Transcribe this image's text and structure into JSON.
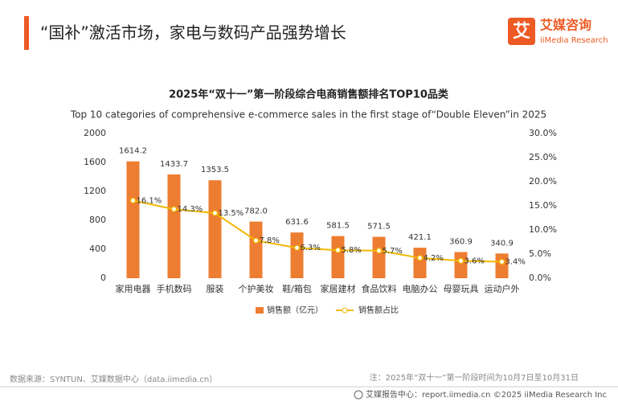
{
  "header": {
    "title": "“国补”激活市场，家电与数码产品强势增长"
  },
  "logo": {
    "icon": "艾",
    "name": "艾媒咨询",
    "sub": "iiMedia Research"
  },
  "chart_data": {
    "type": "bar_line",
    "title": "2025年“双十一”第一阶段综合电商销售额排名TOP10品类",
    "subtitle": "Top 10 categories of comprehensive e-commerce sales in the first stage of“Double Eleven”in 2025",
    "categories": [
      "家用电器",
      "手机数码",
      "服装",
      "个护美妆",
      "鞋/箱包",
      "家居建材",
      "食品饮料",
      "电脑办公",
      "母婴玩具",
      "运动户外"
    ],
    "series": [
      {
        "name": "销售额（亿元）",
        "color": "#ed7d31",
        "values": [
          1614.2,
          1433.7,
          1353.5,
          782.0,
          631.6,
          581.5,
          571.5,
          421.1,
          360.9,
          340.9
        ],
        "value_labels": [
          "1614.2",
          "1433.7",
          "1353.5",
          "782.0",
          "631.6",
          "581.5",
          "571.5",
          "421.1",
          "360.9",
          "340.9"
        ]
      },
      {
        "name": "销售额占比",
        "color": "#f2b800",
        "axis": "y2",
        "values": [
          16.1,
          14.3,
          13.5,
          7.8,
          6.3,
          5.8,
          5.7,
          4.2,
          3.6,
          3.4
        ],
        "value_labels": [
          "16.1%",
          "14.3%",
          "13.5%",
          "7.8%",
          "6.3%",
          "5.8%",
          "5.7%",
          "4.2%",
          "3.6%",
          "3.4%"
        ]
      }
    ],
    "ylim": [
      0,
      2000
    ],
    "yticks": [
      0,
      400,
      800,
      1200,
      1600,
      2000
    ],
    "y2lim": [
      0,
      30
    ],
    "y2ticks": [
      {
        "value": 0,
        "label": "0.0%"
      },
      {
        "value": 5,
        "label": "5.0%"
      },
      {
        "value": 10,
        "label": "10.0%"
      },
      {
        "value": 15,
        "label": "15.0%"
      },
      {
        "value": 20,
        "label": "20.0%"
      },
      {
        "value": 25,
        "label": "25.0%"
      },
      {
        "value": 30,
        "label": "30.0%"
      }
    ]
  },
  "footer": {
    "source": "数据来源：SYNTUN、艾媒数据中心（data.iimedia.cn）",
    "note": "注：2025年“双十一”第一阶段时间为10月7日至10月31日",
    "site": "艾媒报告中心：report.iimedia.cn",
    "copyright": "©2025  iiMedia Research  Inc"
  }
}
